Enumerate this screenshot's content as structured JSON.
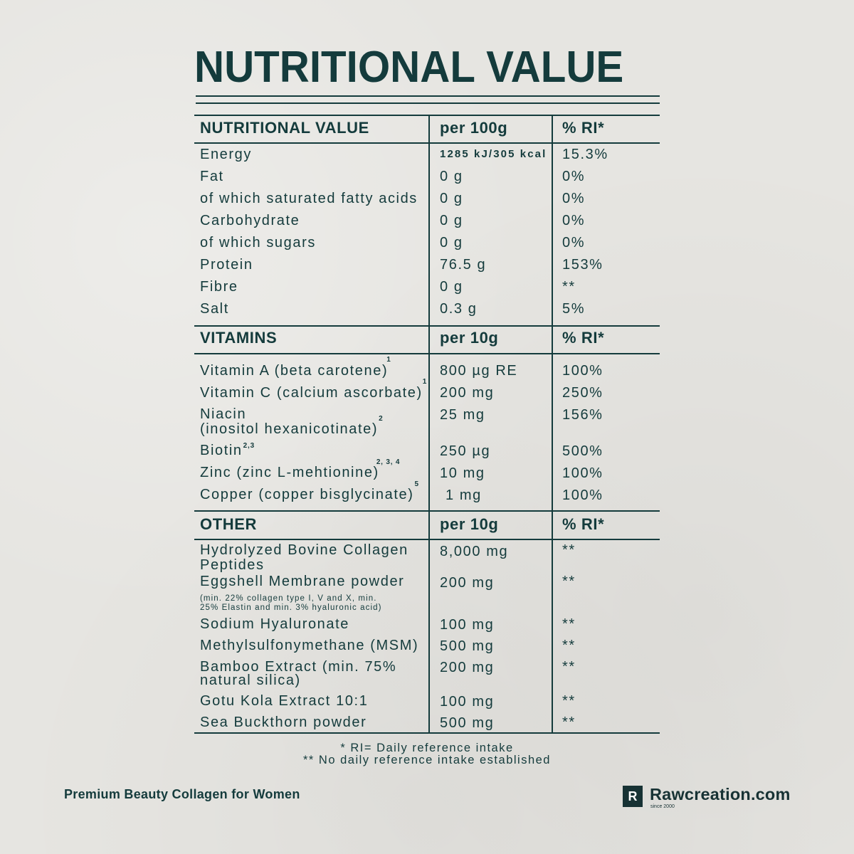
{
  "title": "NUTRITIONAL VALUE",
  "nutrition": {
    "header": {
      "label": "NUTRITIONAL VALUE",
      "amount": "per 100g",
      "ri": "% RI*"
    },
    "rows": [
      {
        "label": "Energy",
        "amount": "1285 kJ/305 kcal",
        "ri": "15.3%"
      },
      {
        "label": "Fat",
        "amount": "0 g",
        "ri": "0%"
      },
      {
        "label": "of which saturated fatty acids",
        "amount": "0 g",
        "ri": "0%"
      },
      {
        "label": "Carbohydrate",
        "amount": "0 g",
        "ri": "0%"
      },
      {
        "label": "of which sugars",
        "amount": "0 g",
        "ri": "0%"
      },
      {
        "label": "Protein",
        "amount": "76.5 g",
        "ri": "153%"
      },
      {
        "label": "Fibre",
        "amount": "0 g",
        "ri": "**"
      },
      {
        "label": "Salt",
        "amount": "0.3 g",
        "ri": "5%"
      }
    ]
  },
  "vitamins": {
    "header": {
      "label": "VITAMINS",
      "amount": "per 10g",
      "ri": "% RI*"
    },
    "rows": [
      {
        "label": "Vitamin A (beta carotene)",
        "sup": "1",
        "amount": "800 µg RE",
        "ri": "100%"
      },
      {
        "label": "Vitamin C (calcium ascorbate)",
        "sup": "1",
        "amount": "200 mg",
        "ri": "250%"
      },
      {
        "label_lines": [
          "Niacin",
          "(inositol hexanicotinate)"
        ],
        "sup": "2",
        "amount": "25 mg",
        "ri": "156%"
      },
      {
        "label": "Biotin",
        "sup": "2,3",
        "amount": "250 µg",
        "ri": "500%"
      },
      {
        "label": "Zinc (zinc L-mehtionine)",
        "sup": "2, 3, 4",
        "amount": "10 mg",
        "ri": "100%"
      },
      {
        "label": "Copper (copper bisglycinate)",
        "sup": "5",
        "amount": "1 mg",
        "ri": "100%"
      }
    ]
  },
  "other": {
    "header": {
      "label": "OTHER",
      "amount": "per 10g",
      "ri": "% RI*"
    },
    "rows": [
      {
        "label_lines": [
          "Hydrolyzed Bovine Collagen",
          "Peptides"
        ],
        "amount": "8,000 mg",
        "ri": "**"
      },
      {
        "label": "Eggshell Membrane powder",
        "note_lines": [
          "(min. 22% collagen type I, V and X, min.",
          "25% Elastin and min. 3% hyaluronic acid)"
        ],
        "amount": "200 mg",
        "ri": "**"
      },
      {
        "label": "Sodium Hyaluronate",
        "amount": "100 mg",
        "ri": "**"
      },
      {
        "label": "Methylsulfonymethane (MSM)",
        "amount": "500 mg",
        "ri": "**"
      },
      {
        "label_lines": [
          "Bamboo Extract (min. 75%",
          "natural silica)"
        ],
        "amount": "200 mg",
        "ri": "**"
      },
      {
        "label": "Gotu Kola Extract 10:1",
        "amount": "100 mg",
        "ri": "**"
      },
      {
        "label": "Sea Buckthorn powder",
        "amount": "500 mg",
        "ri": "**"
      }
    ]
  },
  "footnotes": {
    "ri": "* RI= Daily reference intake",
    "no_ri": "** No daily reference intake established"
  },
  "product_name": "Premium Beauty Collagen for Women",
  "brand": {
    "logo_letter": "R",
    "name": "Rawcreation.com",
    "tagline": "since 2000"
  },
  "colors": {
    "text": "#143b3c",
    "background": "#e6e5e1",
    "logo": "#173234"
  }
}
